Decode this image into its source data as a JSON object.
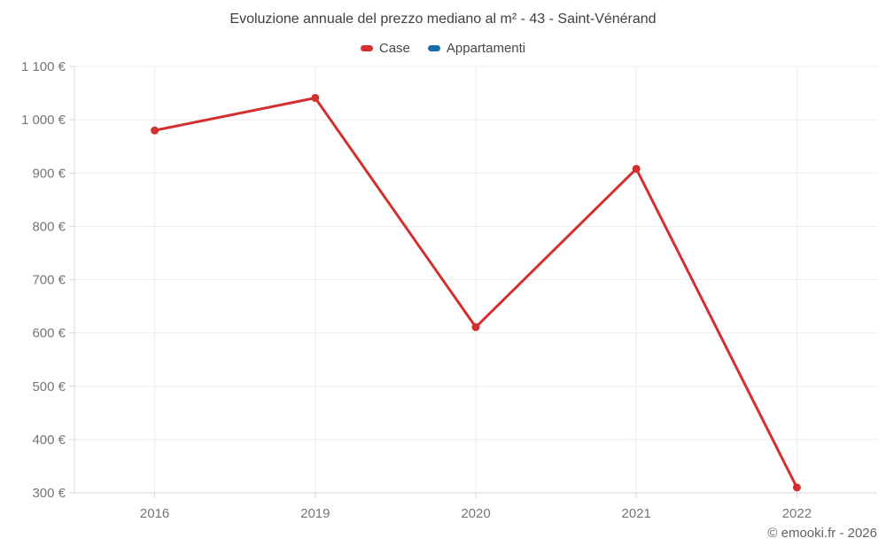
{
  "footer": {
    "copyright": "© emooki.fr - 2026"
  },
  "colors": {
    "case_red": "#d32f2f",
    "appartamenti_blue": "#1b6ea5",
    "grid": "#ececec",
    "axis": "#d9d9d9",
    "tick_label": "#757575",
    "title": "#3f3f3f",
    "legend_label": "#474747",
    "copyright": "#636363"
  },
  "chart_data": {
    "type": "line",
    "title": "Evoluzione annuale del prezzo mediano al m² - 43 - Saint-Vénérand",
    "categories": [
      "2016",
      "2019",
      "2020",
      "2021",
      "2022"
    ],
    "series": [
      {
        "name": "Case",
        "color": "#d32f2f",
        "values": [
          980,
          1041,
          611,
          908,
          310
        ]
      },
      {
        "name": "Appartamenti",
        "color": "#1b6ea5",
        "values": [
          null,
          null,
          null,
          null,
          null
        ]
      }
    ],
    "ylim": [
      300,
      1100
    ],
    "y_ticks": [
      1100,
      1000,
      900,
      800,
      700,
      600,
      500,
      400,
      300
    ],
    "y_tick_labels": [
      "1 100 €",
      "1 000 €",
      "900 €",
      "800 €",
      "700 €",
      "600 €",
      "500 €",
      "400 €",
      "300 €"
    ],
    "xlabel": "",
    "ylabel": "",
    "grid": true,
    "legend_position": "top"
  }
}
